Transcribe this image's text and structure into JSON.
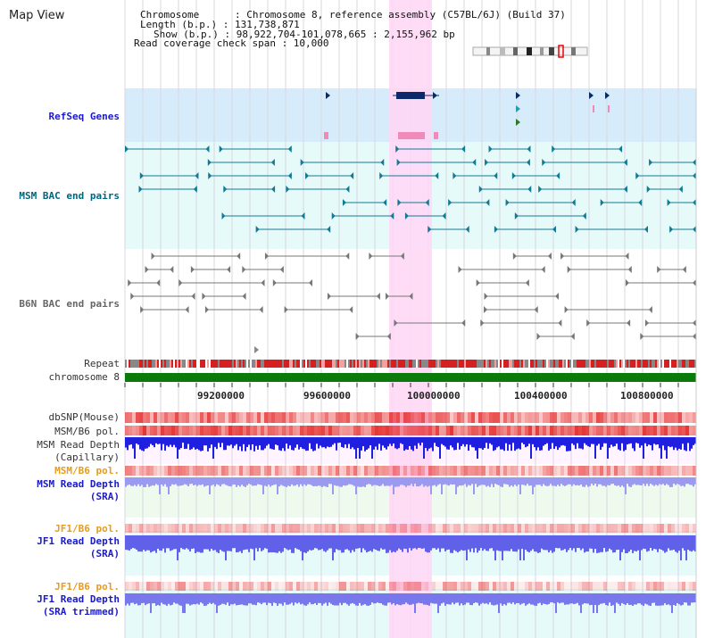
{
  "view_title": "Map View",
  "header": {
    "chromosome": "Chromosome      : Chromosome 8, reference assembly (C57BL/6J) (Build 37)",
    "length": "Length (b.p.) : 131,738,871",
    "show": "Show (b.p.) : 98,922,704-101,078,665 : 2,155,962 bp",
    "span": "Read coverage check span : 10,000"
  },
  "tracks": {
    "refseq": "RefSeq Genes",
    "msm_bac": "MSM BAC end pairs",
    "b6n_bac": "B6N BAC end pairs",
    "repeat": "Repeat",
    "chromosome": "chromosome 8",
    "dbsnp": "dbSNP(Mouse)",
    "msm_b6_pol": "MSM/B6 pol.",
    "msm_depth_line1": "MSM Read Depth",
    "msm_depth_line2": "(Capillary)",
    "msm_b6_pol_2": "MSM/B6 pol.",
    "msm_sra_line1": "MSM Read Depth",
    "msm_sra_line2": "(SRA)",
    "jf1_pol": "JF1/B6 pol.",
    "jf1_depth_line1": "JF1 Read Depth",
    "jf1_depth_line2": "(SRA)",
    "jf1_pol_2": "JF1/B6 pol.",
    "jf1_trim_line1": "JF1 Read Depth",
    "jf1_trim_line2": "(SRA trimmed)"
  },
  "axis_ticks": [
    "99200000",
    "99600000",
    "100000000",
    "100400000",
    "100800000"
  ],
  "colors": {
    "highlight": "#ffd6f5",
    "refseq_bg": "#d6ecfa",
    "msm_bac_bg": "#e6fafa",
    "chromosome": "#0a7a0a",
    "depth_blue": "#1f1fe0",
    "depth_light": "#8080ee"
  }
}
